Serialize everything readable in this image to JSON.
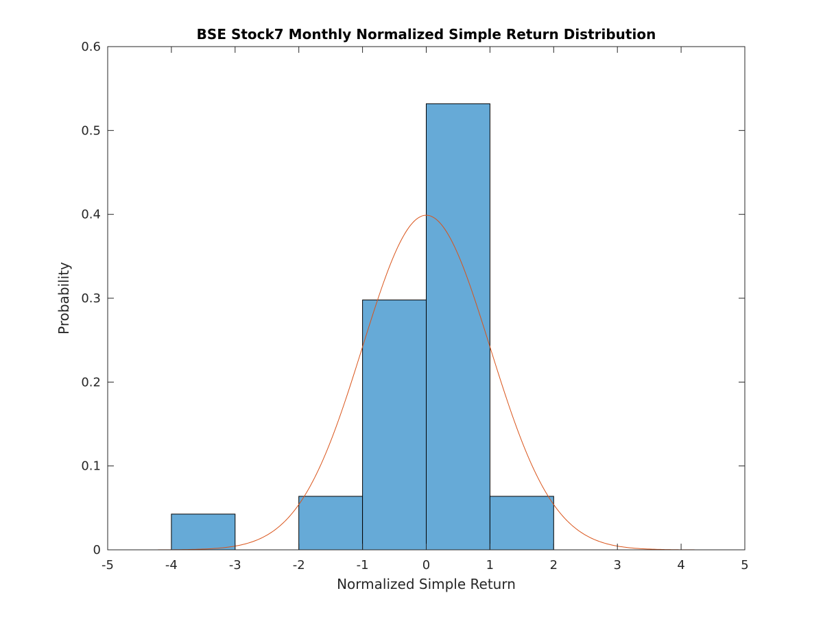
{
  "chart_data": {
    "type": "bar",
    "title": "BSE Stock7 Monthly Normalized Simple Return Distribution",
    "xlabel": "Normalized Simple Return",
    "ylabel": "Probability",
    "xlim": [
      -5,
      5
    ],
    "ylim": [
      0,
      0.6
    ],
    "xticks": [
      "-5",
      "-4",
      "-3",
      "-2",
      "-1",
      "0",
      "1",
      "2",
      "3",
      "4",
      "5"
    ],
    "yticks": [
      "0",
      "0.1",
      "0.2",
      "0.3",
      "0.4",
      "0.5",
      "0.6"
    ],
    "grid": false,
    "bins": [
      {
        "start": -4,
        "end": -3,
        "value": 0.0426
      },
      {
        "start": -3,
        "end": -2,
        "value": 0
      },
      {
        "start": -2,
        "end": -1,
        "value": 0.0638
      },
      {
        "start": -1,
        "end": 0,
        "value": 0.2979
      },
      {
        "start": 0,
        "end": 1,
        "value": 0.5319
      },
      {
        "start": 1,
        "end": 2,
        "value": 0.0638
      }
    ],
    "curve": {
      "type": "normal-pdf",
      "mean": 0,
      "std": 1,
      "range": [
        -5,
        5
      ]
    },
    "colors": {
      "bar_fill": "#66aad7",
      "bar_edge": "#000000",
      "curve": "#d95319",
      "axis": "#262626"
    }
  }
}
